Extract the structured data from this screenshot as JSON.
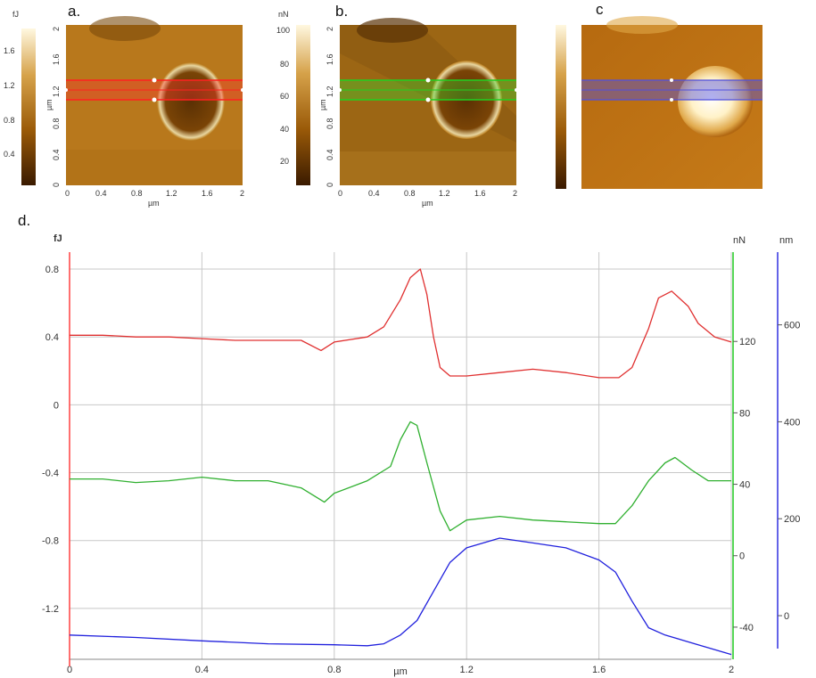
{
  "panels": {
    "a": {
      "letter": "a.",
      "cbar_unit": "fJ",
      "cbar_ticks": [
        "1.6",
        "1.2",
        "0.8",
        "0.4"
      ],
      "axis_ticks": [
        "0",
        "0.4",
        "0.8",
        "1.2",
        "1.6",
        "2"
      ],
      "axis_label": "µm",
      "yaxis_label": "µm",
      "accent": "#ff2020"
    },
    "b": {
      "letter": "b.",
      "cbar_unit": "nN",
      "cbar_ticks": [
        "100",
        "80",
        "60",
        "40",
        "20"
      ],
      "axis_ticks": [
        "0",
        "0.4",
        "0.8",
        "1.2",
        "1.6",
        "2"
      ],
      "axis_label": "µm",
      "yaxis_label": "µm",
      "accent": "#20d020"
    },
    "c": {
      "letter": "c",
      "accent": "#5050e0"
    },
    "d": {
      "letter": "d."
    }
  },
  "chart_data": {
    "type": "line",
    "title": "",
    "xlabel": "µm",
    "xlim": [
      0,
      2
    ],
    "x_ticks": [
      "0",
      "0.4",
      "0.8",
      "1.2",
      "1.6",
      "2"
    ],
    "axes": [
      {
        "name": "left",
        "unit": "fJ",
        "color": "#ff4040",
        "ticks": [
          "0.8",
          "0.4",
          "0",
          "-0.4",
          "-0.8",
          "-1.2"
        ],
        "ylim": [
          -1.5,
          0.9
        ]
      },
      {
        "name": "right1",
        "unit": "nN",
        "color": "#20cc20",
        "ticks": [
          "120",
          "80",
          "40",
          "0",
          "-40"
        ],
        "ylim": [
          -58,
          170
        ]
      },
      {
        "name": "right2",
        "unit": "nm",
        "color": "#3030e0",
        "ticks": [
          "600",
          "400",
          "200",
          "0"
        ],
        "ylim": [
          -90,
          750
        ]
      }
    ],
    "grid": true,
    "series": [
      {
        "axis": "left",
        "color": "#e03030",
        "x": [
          0,
          0.1,
          0.2,
          0.3,
          0.4,
          0.5,
          0.6,
          0.7,
          0.76,
          0.8,
          0.9,
          0.95,
          1.0,
          1.03,
          1.06,
          1.08,
          1.1,
          1.12,
          1.15,
          1.2,
          1.3,
          1.4,
          1.5,
          1.6,
          1.66,
          1.7,
          1.75,
          1.78,
          1.82,
          1.87,
          1.9,
          1.95,
          2.0
        ],
        "y": [
          0.41,
          0.41,
          0.4,
          0.4,
          0.39,
          0.38,
          0.38,
          0.38,
          0.32,
          0.37,
          0.4,
          0.46,
          0.62,
          0.75,
          0.8,
          0.65,
          0.4,
          0.22,
          0.17,
          0.17,
          0.19,
          0.21,
          0.19,
          0.16,
          0.16,
          0.22,
          0.45,
          0.63,
          0.67,
          0.58,
          0.48,
          0.4,
          0.37
        ]
      },
      {
        "axis": "right1",
        "color": "#30b030",
        "x": [
          0,
          0.1,
          0.2,
          0.3,
          0.4,
          0.5,
          0.6,
          0.7,
          0.77,
          0.8,
          0.9,
          0.97,
          1.0,
          1.03,
          1.05,
          1.08,
          1.12,
          1.15,
          1.2,
          1.3,
          1.4,
          1.5,
          1.6,
          1.65,
          1.7,
          1.75,
          1.8,
          1.83,
          1.88,
          1.93,
          2.0
        ],
        "y": [
          43,
          43,
          41,
          42,
          44,
          42,
          42,
          38,
          30,
          35,
          42,
          50,
          65,
          75,
          73,
          52,
          25,
          14,
          20,
          22,
          20,
          19,
          18,
          18,
          28,
          42,
          52,
          55,
          48,
          42,
          42
        ]
      },
      {
        "axis": "right2",
        "color": "#2020dd",
        "x": [
          0,
          0.2,
          0.4,
          0.6,
          0.8,
          0.9,
          0.95,
          1.0,
          1.05,
          1.1,
          1.15,
          1.2,
          1.3,
          1.4,
          1.5,
          1.6,
          1.65,
          1.7,
          1.75,
          1.8,
          1.9,
          2.0
        ],
        "y": [
          -40,
          -45,
          -52,
          -58,
          -60,
          -62,
          -58,
          -40,
          -10,
          50,
          110,
          140,
          160,
          150,
          140,
          115,
          90,
          30,
          -25,
          -40,
          -60,
          -80
        ]
      }
    ]
  }
}
